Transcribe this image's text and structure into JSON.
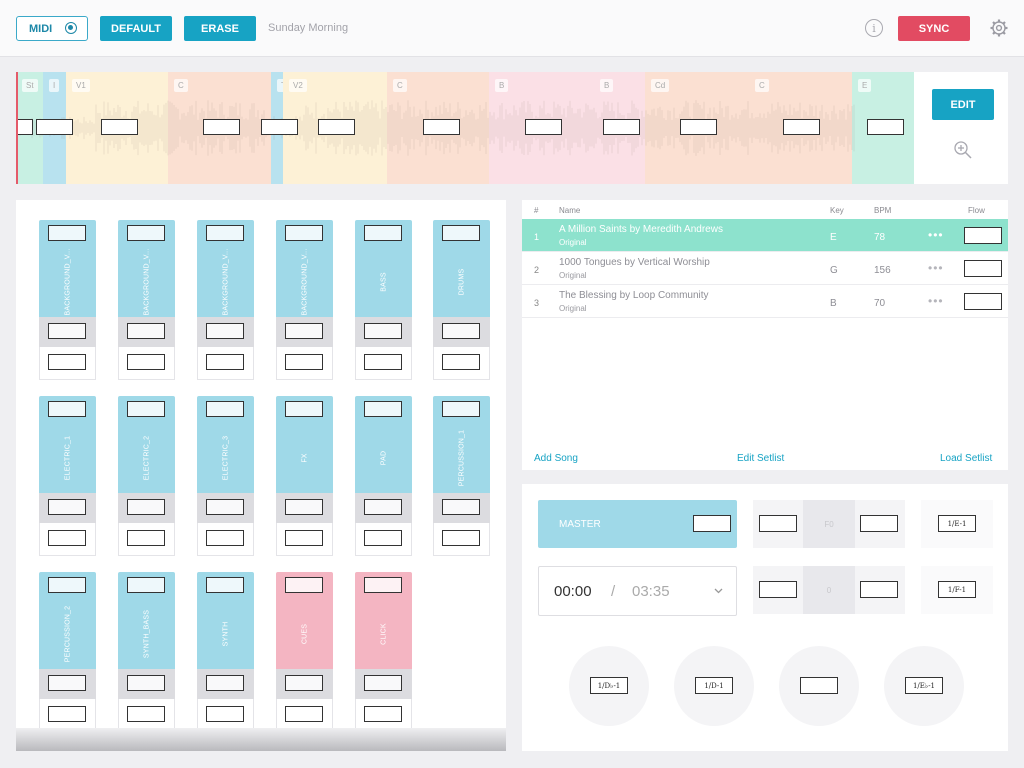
{
  "toolbar": {
    "midi_label": "MIDI",
    "default_label": "DEFAULT",
    "erase_label": "ERASE",
    "preset_name": "Sunday Morning",
    "info_glyph": "i",
    "sync_label": "SYNC"
  },
  "timeline": {
    "segments": [
      {
        "label": "St",
        "color": "#c8f0e3"
      },
      {
        "label": "I",
        "color": "#b8e2ef"
      },
      {
        "label": "V1",
        "color": "#fdf1d6"
      },
      {
        "label": "C",
        "color": "#fbe0d2"
      },
      {
        "label": "Tr",
        "color": "#b8e2ef"
      },
      {
        "label": "V2",
        "color": "#fdf1d6"
      },
      {
        "label": "C",
        "color": "#fbe0d2"
      },
      {
        "label": "B",
        "color": "#fbe0e6"
      },
      {
        "label": "B",
        "color": "#fbe0e6"
      },
      {
        "label": "Cd",
        "color": "#fbe0d2"
      },
      {
        "label": "C",
        "color": "#fbe0d2"
      },
      {
        "label": "E",
        "color": "#c8f0e3"
      }
    ],
    "edit_label": "EDIT"
  },
  "mixer": {
    "channels": [
      {
        "name": "BACKGROUND_V...",
        "color": "#9fd9e8"
      },
      {
        "name": "BACKGROUND_V...",
        "color": "#9fd9e8"
      },
      {
        "name": "BACKGROUND_V...",
        "color": "#9fd9e8"
      },
      {
        "name": "BACKGROUND_V...",
        "color": "#9fd9e8"
      },
      {
        "name": "BASS",
        "color": "#9fd9e8"
      },
      {
        "name": "DRUMS",
        "color": "#9fd9e8"
      },
      {
        "name": "ELECTRIC_1",
        "color": "#9fd9e8"
      },
      {
        "name": "ELECTRIC_2",
        "color": "#9fd9e8"
      },
      {
        "name": "ELECTRIC_3",
        "color": "#9fd9e8"
      },
      {
        "name": "FX",
        "color": "#9fd9e8"
      },
      {
        "name": "PAD",
        "color": "#9fd9e8"
      },
      {
        "name": "PERCUSSION_1",
        "color": "#9fd9e8"
      },
      {
        "name": "PERCUSSION_2",
        "color": "#9fd9e8"
      },
      {
        "name": "SYNTH_BASS",
        "color": "#9fd9e8"
      },
      {
        "name": "SYNTH",
        "color": "#9fd9e8"
      },
      {
        "name": "CUES",
        "color": "#f4b5c2"
      },
      {
        "name": "CLICK",
        "color": "#f4b5c2"
      }
    ]
  },
  "setlist": {
    "headers": {
      "num": "#",
      "name": "Name",
      "key": "Key",
      "bpm": "BPM",
      "flow": "Flow"
    },
    "songs": [
      {
        "num": "1",
        "title": "A Million Saints by Meredith Andrews",
        "subtitle": "Original",
        "key": "E",
        "bpm": "78",
        "more": "•••"
      },
      {
        "num": "2",
        "title": "1000 Tongues by Vertical Worship",
        "subtitle": "Original",
        "key": "G",
        "bpm": "156",
        "more": "•••"
      },
      {
        "num": "3",
        "title": "The Blessing by Loop Community",
        "subtitle": "Original",
        "key": "B",
        "bpm": "70",
        "more": "•••"
      }
    ],
    "add_song": "Add Song",
    "edit_setlist": "Edit Setlist",
    "load_setlist": "Load Setlist"
  },
  "transport": {
    "master_label": "MASTER",
    "current_time": "00:00",
    "separator": "/",
    "total_time": "03:35",
    "pitch_center": "F0",
    "tempo_center": "0",
    "key_label_1": "1/E-1",
    "key_label_2": "1/F-1",
    "pads": [
      "1/D♭-1",
      "1/D-1",
      "",
      "1/E♭-1"
    ]
  }
}
